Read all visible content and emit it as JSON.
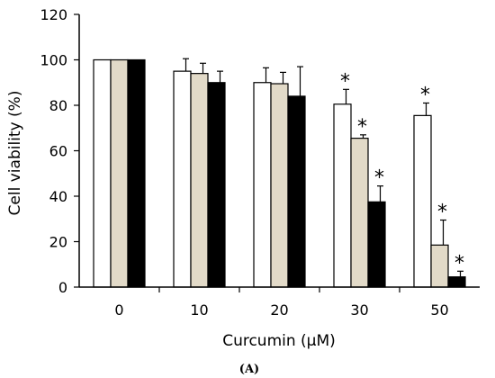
{
  "chart_data": {
    "type": "bar",
    "categories": [
      "0",
      "10",
      "20",
      "30",
      "50"
    ],
    "xlabel": "Curcumin (μM)",
    "ylabel": "Cell viability (%)",
    "ylim": [
      0,
      120
    ],
    "yticks": [
      0,
      20,
      40,
      60,
      80,
      100,
      120
    ],
    "series": [
      {
        "color": "#ffffff",
        "values": [
          100,
          95,
          90,
          80.5,
          75.5
        ],
        "errors": [
          0,
          5.5,
          6.5,
          6.5,
          5.5
        ],
        "significant": [
          false,
          false,
          false,
          true,
          true
        ]
      },
      {
        "color": "#e2dac8",
        "values": [
          100,
          94,
          89.5,
          65.5,
          18.5
        ],
        "errors": [
          0,
          4.5,
          5,
          1.5,
          11
        ],
        "significant": [
          false,
          false,
          false,
          true,
          true
        ]
      },
      {
        "color": "#000000",
        "values": [
          100,
          90,
          84,
          37.5,
          4.5
        ],
        "errors": [
          0,
          5,
          13,
          7,
          2.5
        ],
        "significant": [
          false,
          false,
          false,
          true,
          true
        ]
      }
    ],
    "significance_marker": "*",
    "grid": false,
    "legend": "none"
  },
  "panel_label": "(A)"
}
